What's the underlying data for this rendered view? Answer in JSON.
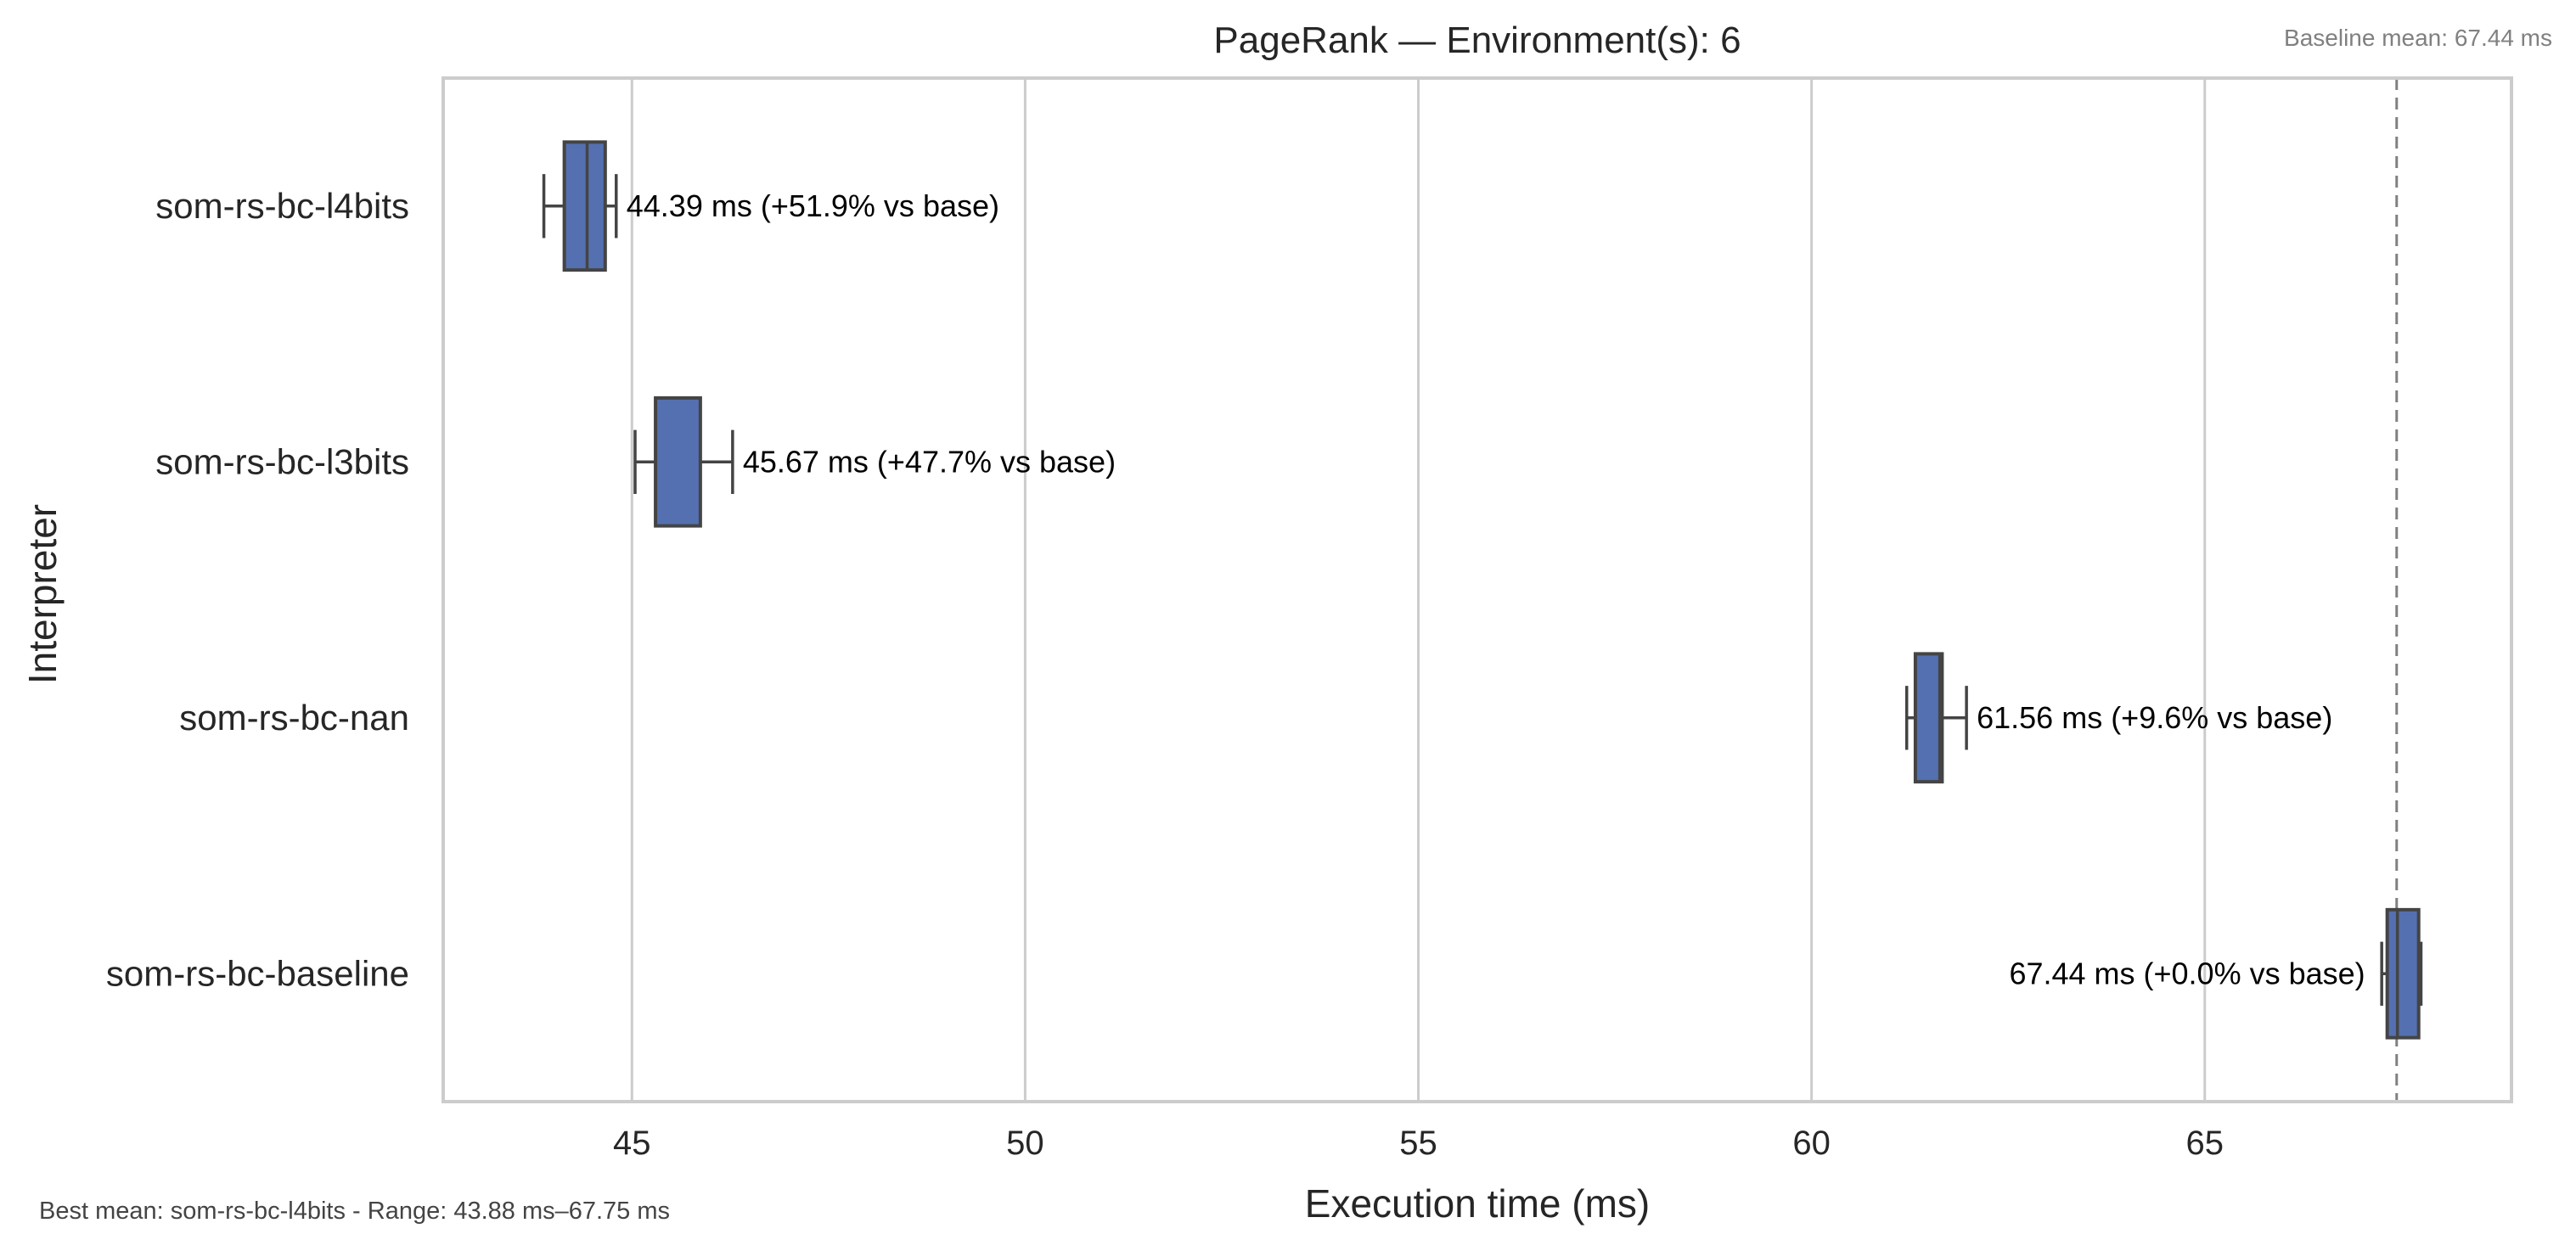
{
  "chart_data": {
    "type": "box",
    "title": "PageRank — Environment(s): 6",
    "xlabel": "Execution time (ms)",
    "ylabel": "Interpreter",
    "xlim": [
      42.6,
      68.9
    ],
    "xticks": [
      45,
      50,
      55,
      60,
      65
    ],
    "grid": "vertical",
    "orientation": "horizontal",
    "box_color": "#5470b0",
    "edge_color": "#444444",
    "categories": [
      "som-rs-bc-l4bits",
      "som-rs-bc-l3bits",
      "som-rs-bc-nan",
      "som-rs-bc-baseline"
    ],
    "boxes": [
      {
        "name": "som-rs-bc-l4bits",
        "whisker_low": 43.88,
        "q1": 44.14,
        "median": 44.43,
        "q3": 44.66,
        "whisker_high": 44.8,
        "label": "44.39 ms  (+51.9% vs base)"
      },
      {
        "name": "som-rs-bc-l3bits",
        "whisker_low": 45.04,
        "q1": 45.3,
        "median": 45.3,
        "q3": 45.87,
        "whisker_high": 46.28,
        "label": "45.67 ms  (+47.7% vs base)"
      },
      {
        "name": "som-rs-bc-nan",
        "whisker_low": 61.21,
        "q1": 61.32,
        "median": 61.63,
        "q3": 61.66,
        "whisker_high": 61.97,
        "label": "61.56 ms  (+9.6% vs base)"
      },
      {
        "name": "som-rs-bc-baseline",
        "whisker_low": 67.25,
        "q1": 67.32,
        "median": 67.45,
        "q3": 67.72,
        "whisker_high": 67.75,
        "label": "67.44 ms  (+0.0% vs base)"
      }
    ],
    "baseline_value": 67.44,
    "baseline_label": "Baseline mean: 67.44 ms",
    "footnote": "Best mean: som-rs-bc-l4bits - Range: 43.88 ms–67.75 ms"
  }
}
